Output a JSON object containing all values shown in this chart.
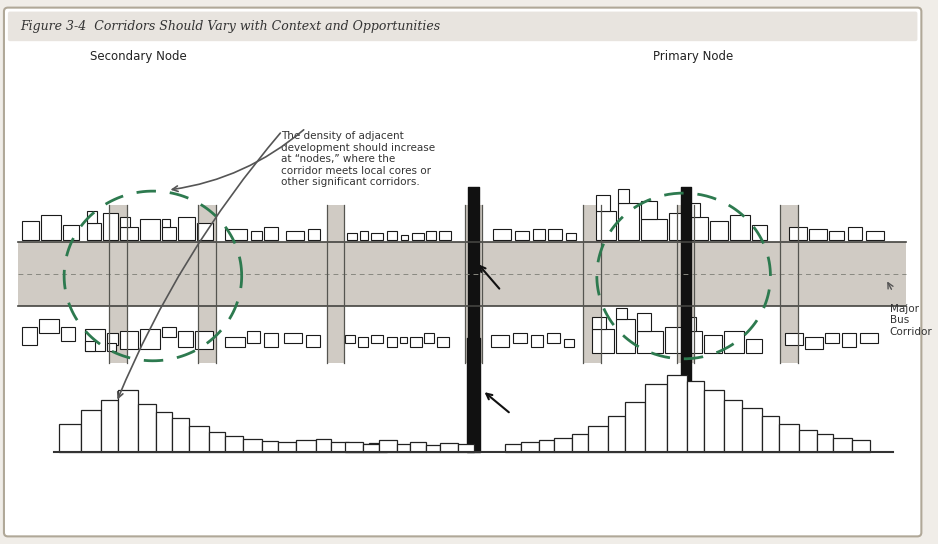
{
  "title": "Figure 3-4  Corridors Should Vary with Context and Opportunities",
  "bg_color": "#f0ede8",
  "border_color": "#b0a898",
  "corridor_color": "#d0cbc4",
  "road_stripe": "#888880",
  "building_outline": "#1a1a1a",
  "secondary_node_label": "Secondary Node",
  "primary_node_label": "Primary Node",
  "major_bus_label": "Major\nBus\nCorridor",
  "annotation_text": "The density of adjacent\ndevelopment should increase\nat “nodes,” where the\ncorridor meets local cores or\nother significant corridors.",
  "dashed_circle_color": "#2d7a4f",
  "road_edge_color": "#b0aba4",
  "cross_road_color": "#111111"
}
